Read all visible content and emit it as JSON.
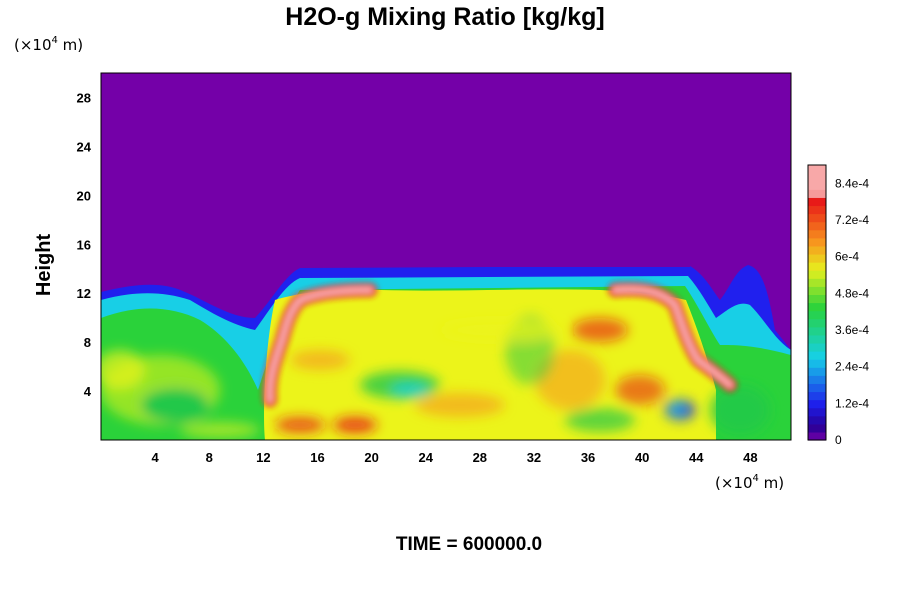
{
  "chart_data": {
    "type": "heatmap",
    "title": "H2O-g Mixing Ratio [kg/kg]",
    "ylabel": "Height",
    "x_unit": {
      "prefix": "(×10",
      "exp": "4",
      "suffix": " m)"
    },
    "y_unit": {
      "prefix": "(×10",
      "exp": "4",
      "suffix": " m)"
    },
    "xlim": [
      0,
      51
    ],
    "ylim": [
      0,
      30
    ],
    "x_ticks": [
      "4",
      "8",
      "12",
      "16",
      "20",
      "24",
      "28",
      "32",
      "36",
      "40",
      "44",
      "48"
    ],
    "y_ticks": [
      "4",
      "8",
      "12",
      "16",
      "20",
      "24",
      "28"
    ],
    "colorbar": {
      "min": 0,
      "max": 0.0009,
      "tick_values": [
        0,
        0.00012,
        0.00024,
        0.00036,
        0.00048,
        0.0006,
        0.00072,
        0.00084
      ],
      "tick_labels": [
        "0",
        "1.2e-4",
        "2.4e-4",
        "3.6e-4",
        "4.8e-4",
        "6e-4",
        "7.2e-4",
        "8.4e-4"
      ]
    },
    "moist_layer_top": 13.5,
    "dry_aloft_value": 0,
    "grid": false,
    "legend": "colorbar-right",
    "colors": {
      "dry": "#7400a8",
      "blue": "#2222f0",
      "cyan": "#16cfe8",
      "green": "#28d23a",
      "yellow": "#ecf418",
      "orange": "#f7941c",
      "red": "#e81818",
      "pink": "#f8a8a8"
    }
  },
  "footer": {
    "time_label": "TIME = 600000.0"
  }
}
